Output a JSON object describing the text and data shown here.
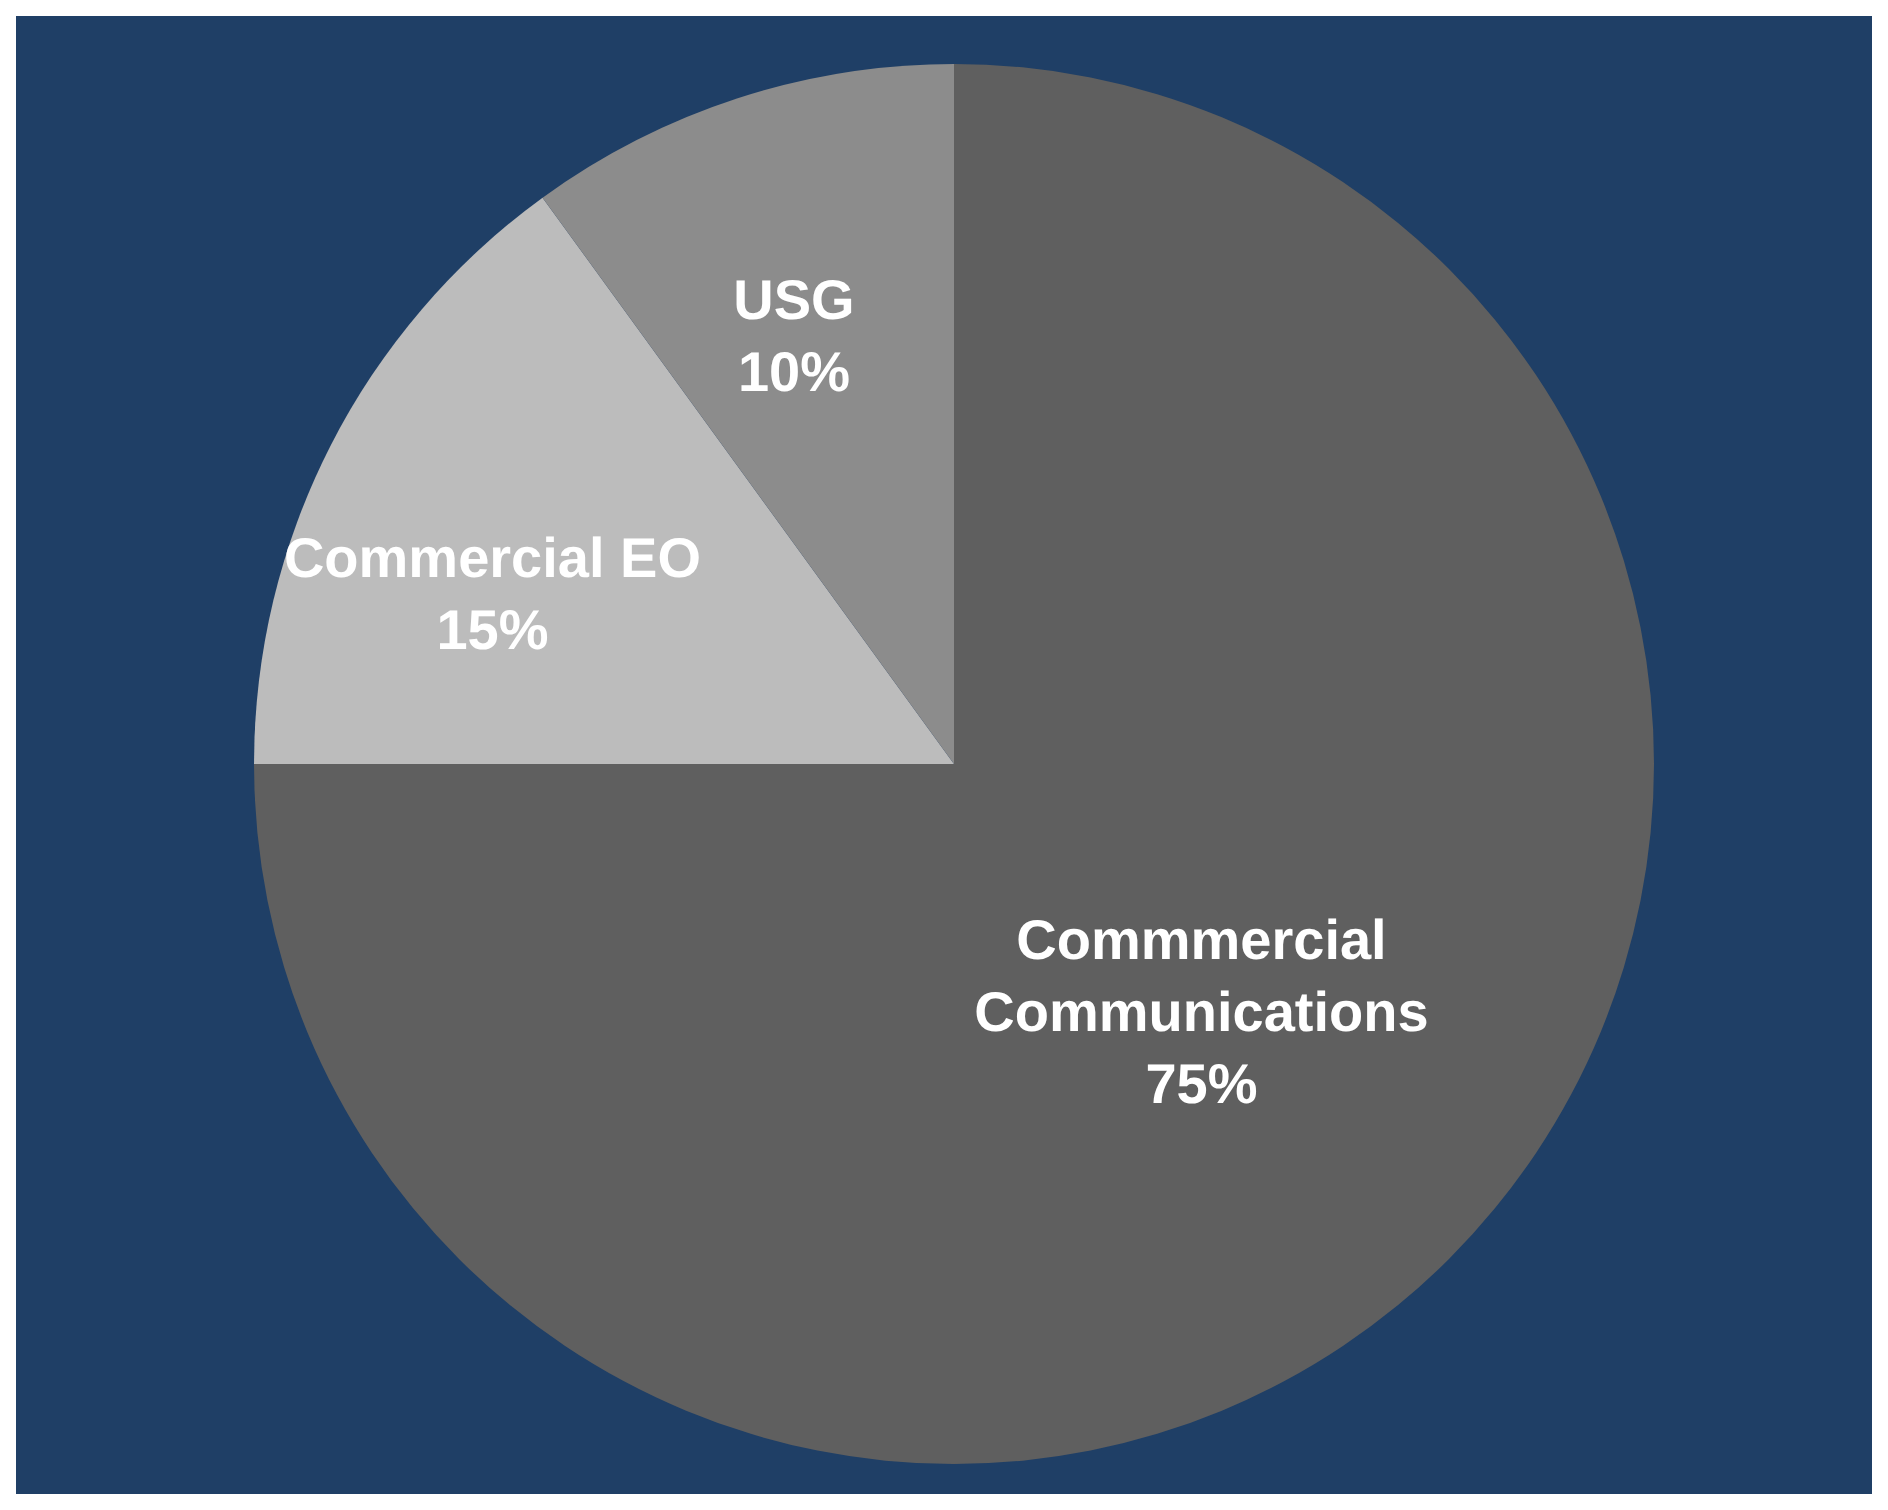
{
  "chart_data": {
    "type": "pie",
    "categories": [
      "Commmercial Communications",
      "Commercial EO",
      "USG"
    ],
    "values": [
      75,
      15,
      10
    ],
    "value_labels": [
      "75%",
      "15%",
      "10%"
    ],
    "colors": [
      "#5f5f5f",
      "#bcbcbc",
      "#8c8c8c"
    ],
    "legend": false
  }
}
